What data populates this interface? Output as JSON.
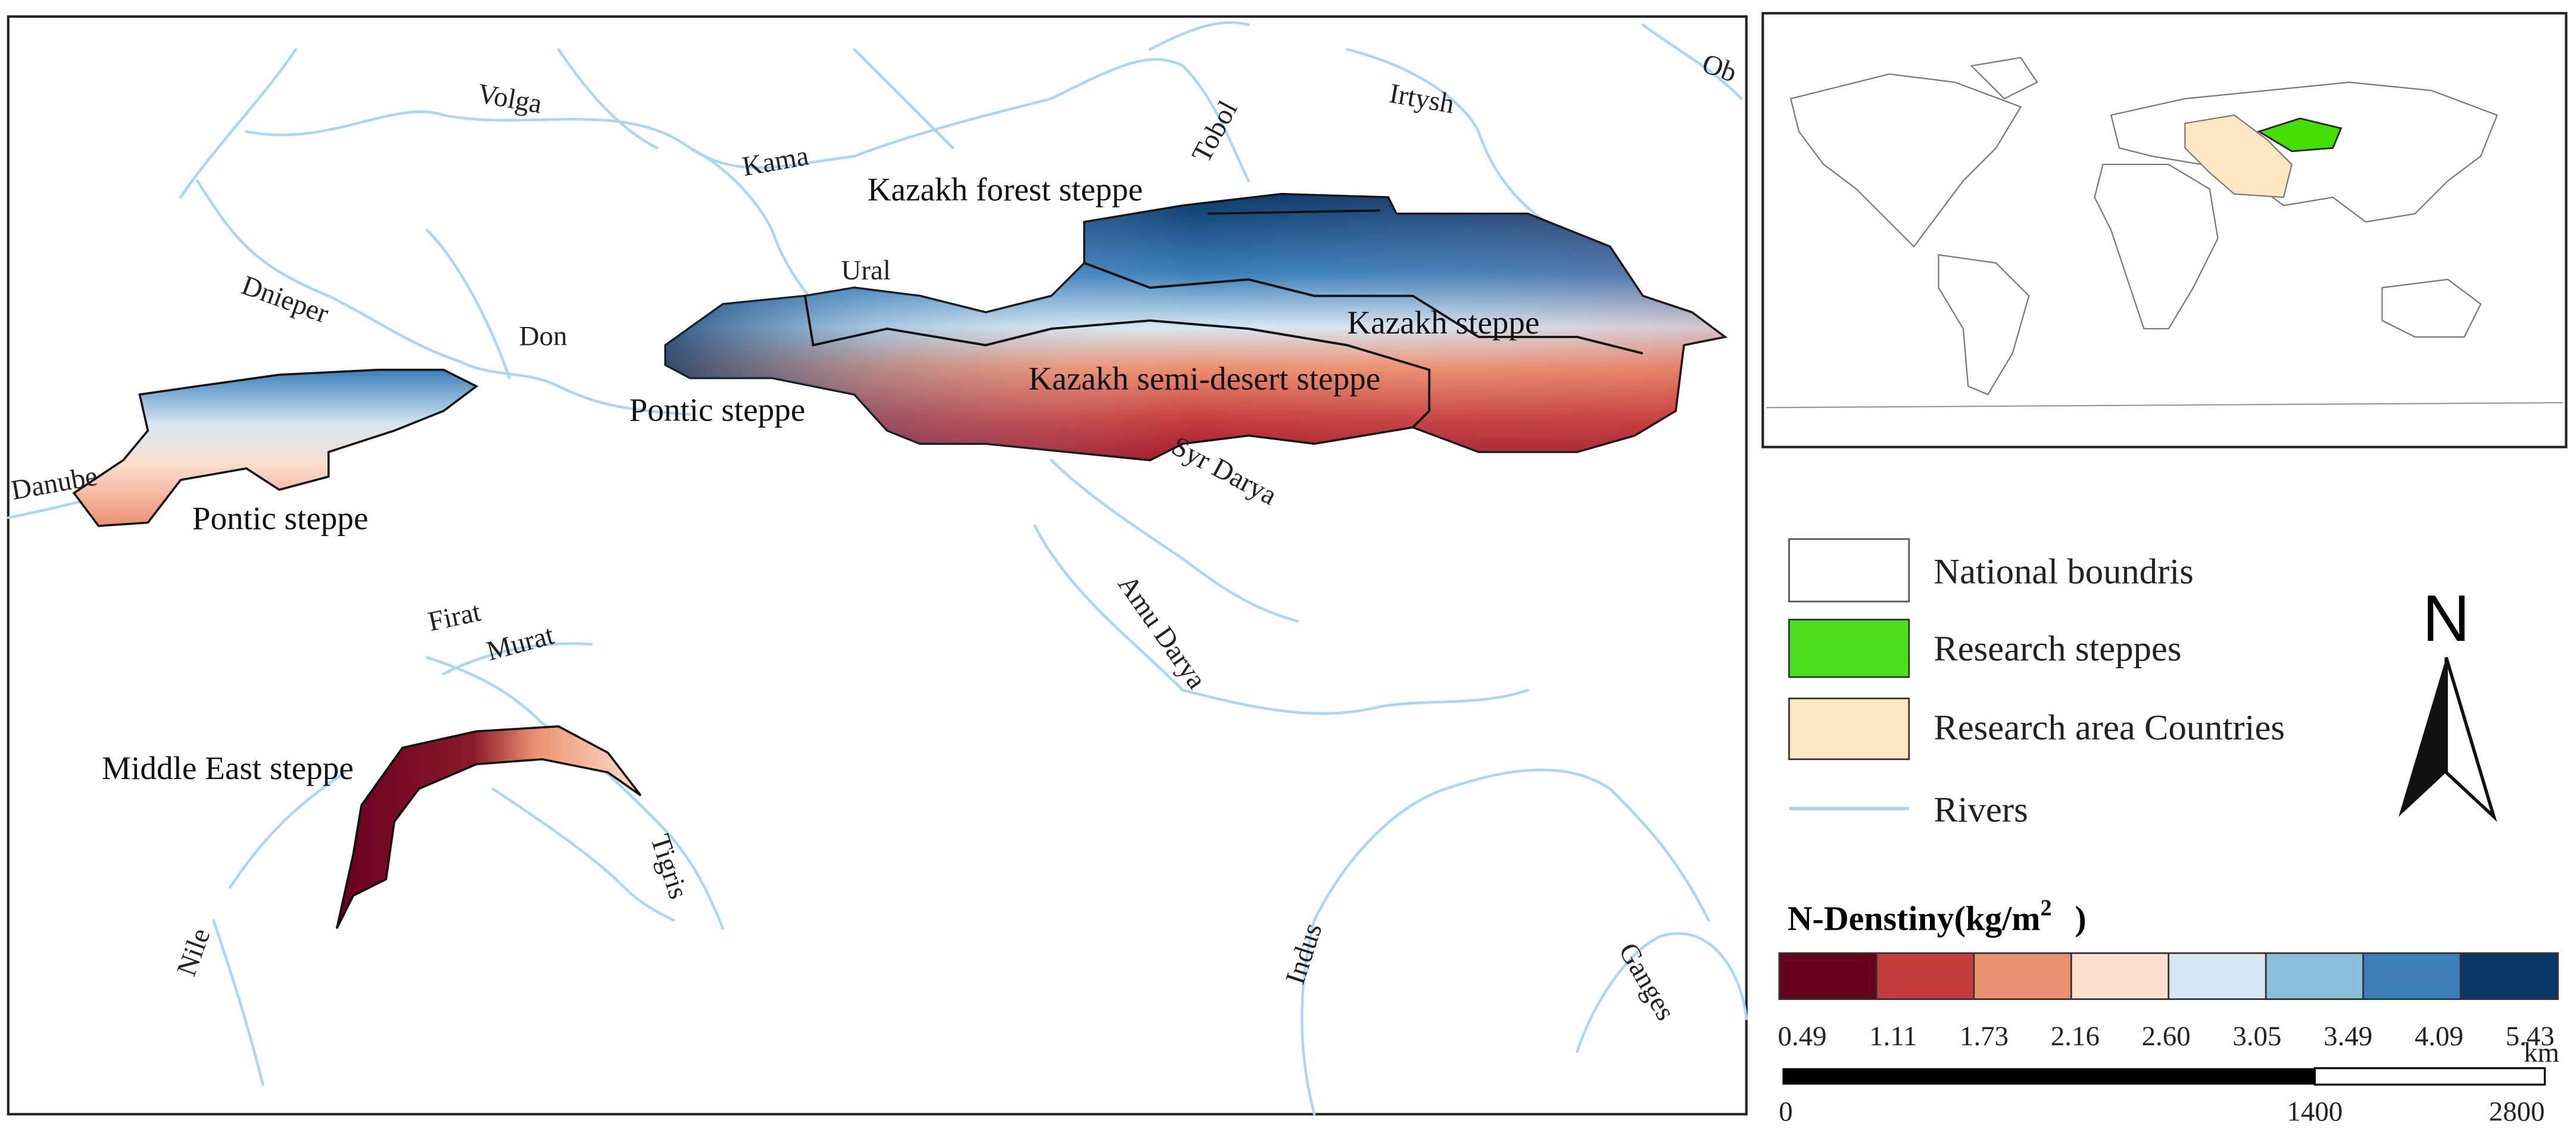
{
  "map": {
    "rivers": [
      "Volga",
      "Kama",
      "Tobol",
      "Irtysh",
      "Ob",
      "Ural",
      "Don",
      "Dnieper",
      "Danube",
      "Syr Darya",
      "Amu Darya",
      "Firat",
      "Murat",
      "Tigris",
      "Nile",
      "Indus",
      "Ganges"
    ],
    "steppes": [
      "Kazakh forest steppe",
      "Kazakh steppe",
      "Kazakh semi-desert steppe",
      "Pontic steppe",
      "Pontic steppe",
      "Middle East steppe"
    ]
  },
  "legend": {
    "items": [
      "National boundris",
      "Research steppes",
      "Research area Countries",
      "Rivers"
    ]
  },
  "north_arrow": "N",
  "colorbar": {
    "title": "N-Denstiny(kg/m",
    "title_superscript": "2",
    "title_end": ")",
    "colors": [
      "#67001f",
      "#c43c3c",
      "#ec9170",
      "#fbdfcf",
      "#d6e7f1",
      "#8cbfdc",
      "#3a7fba",
      "#0b3768"
    ],
    "breaks": [
      "0.49",
      "1.11",
      "1.73",
      "2.16",
      "2.60",
      "3.05",
      "3.49",
      "4.09",
      "5.43"
    ]
  },
  "scale_bar": {
    "unit": "km",
    "labels": [
      "0",
      "1400",
      "2800"
    ]
  }
}
